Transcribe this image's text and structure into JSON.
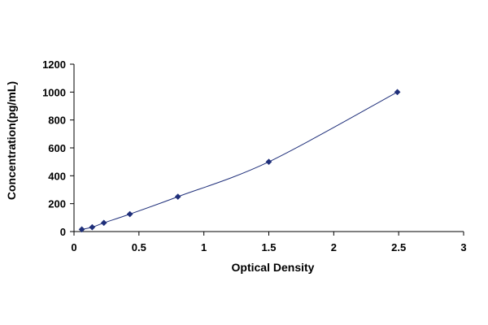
{
  "chart_data": {
    "type": "scatter",
    "title": "",
    "xlabel": "Optical Density",
    "ylabel": "Concentration(pg/mL)",
    "xlim": [
      0,
      3
    ],
    "ylim": [
      0,
      1200
    ],
    "x_ticks": [
      0,
      0.5,
      1,
      1.5,
      2,
      2.5,
      3
    ],
    "x_tick_labels": [
      "0",
      "0.5",
      "1",
      "1.5",
      "2",
      "2.5",
      "3"
    ],
    "y_ticks": [
      0,
      200,
      400,
      600,
      800,
      1000,
      1200
    ],
    "y_tick_labels": [
      "0",
      "200",
      "400",
      "600",
      "800",
      "1000",
      "1200"
    ],
    "grid": false,
    "legend": "none",
    "series": [
      {
        "points": [
          {
            "x": 0.06,
            "y": 15.6
          },
          {
            "x": 0.14,
            "y": 31.2
          },
          {
            "x": 0.23,
            "y": 62.5
          },
          {
            "x": 0.43,
            "y": 125
          },
          {
            "x": 0.8,
            "y": 250
          },
          {
            "x": 1.5,
            "y": 500
          },
          {
            "x": 2.49,
            "y": 1000
          }
        ],
        "fit_curve": true,
        "color": "#1f2f7a"
      }
    ],
    "colors": {
      "marker": "#1f2f7a",
      "curve": "#1f2f7a",
      "axis": "#000000"
    }
  }
}
